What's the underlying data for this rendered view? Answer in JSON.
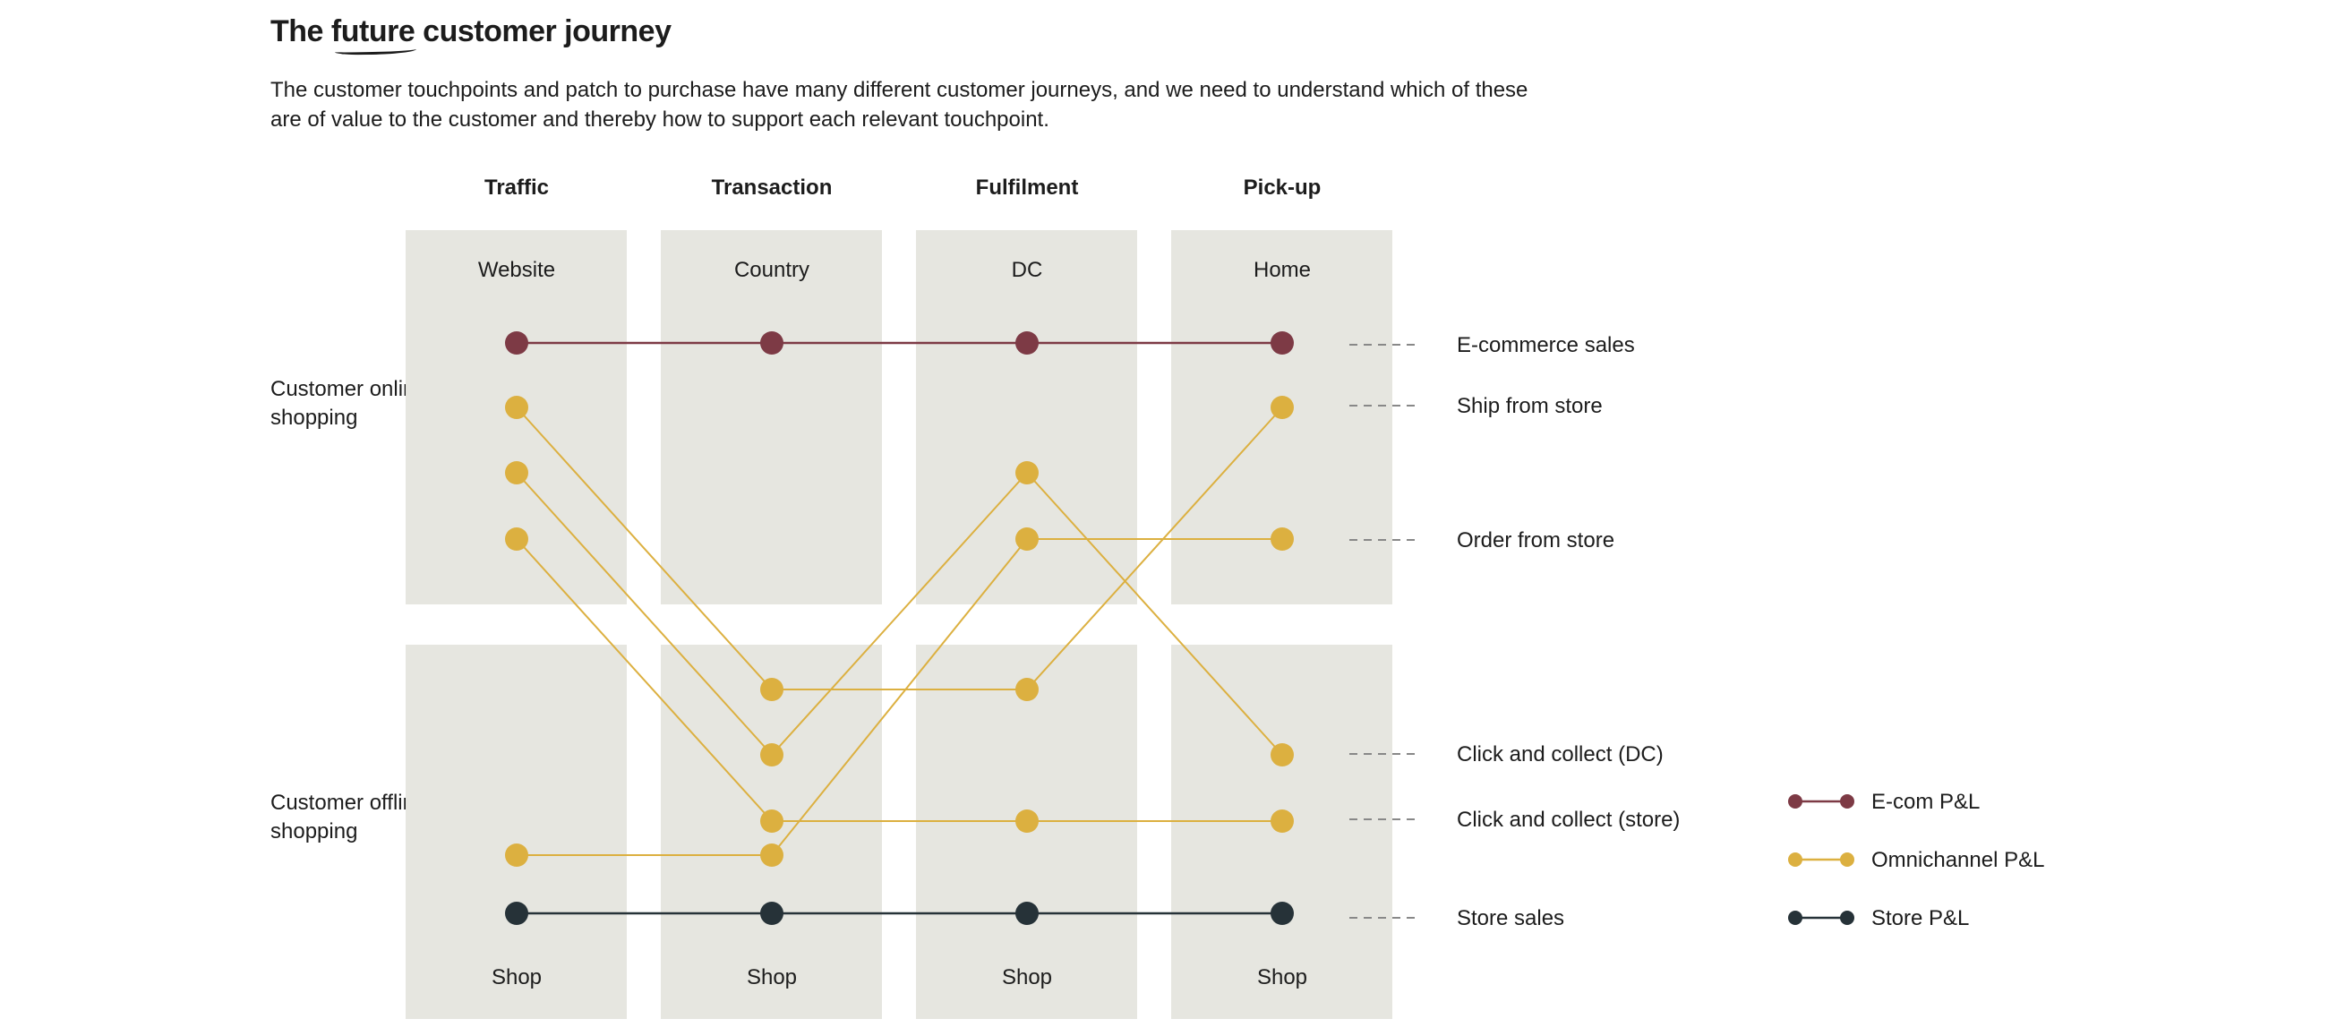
{
  "title": {
    "before": "The ",
    "underlined": "future",
    "after": " customer journey"
  },
  "intro": "The customer touchpoints and patch to purchase have many different customer journeys, and we need to understand which of these are of value to the customer and thereby how to support each relevant touchpoint.",
  "stages": [
    {
      "header": "Traffic",
      "online": "Website",
      "offline": "Shop"
    },
    {
      "header": "Transaction",
      "online": "Country",
      "offline": "Shop"
    },
    {
      "header": "Fulfilment",
      "online": "DC",
      "offline": "Shop"
    },
    {
      "header": "Pick-up",
      "online": "Home",
      "offline": "Shop"
    }
  ],
  "row_labels": {
    "online": "Customer online shopping",
    "offline": "Customer offline shopping"
  },
  "journeys": [
    {
      "label": "E-commerce sales",
      "pl": "ecom",
      "path": [
        "online",
        "online",
        "online",
        "online"
      ]
    },
    {
      "label": "Ship from store",
      "pl": "omni",
      "path": [
        "online",
        "offline",
        "offline",
        "online"
      ]
    },
    {
      "label": "Order from store",
      "pl": "omni",
      "path": [
        "offline",
        "offline",
        "online",
        "online"
      ]
    },
    {
      "label": "Click and collect (DC)",
      "pl": "omni",
      "path": [
        "online",
        "offline",
        "online",
        "offline"
      ]
    },
    {
      "label": "Click and collect (store)",
      "pl": "omni",
      "path": [
        "online",
        "offline",
        "offline",
        "offline"
      ]
    },
    {
      "label": "Store sales",
      "pl": "store",
      "path": [
        "offline",
        "offline",
        "offline",
        "offline"
      ]
    }
  ],
  "legend": [
    {
      "key": "ecom",
      "label": "E-com P&L",
      "color": "#7d3a45"
    },
    {
      "key": "omni",
      "label": "Omnichannel P&L",
      "color": "#dcb040"
    },
    {
      "key": "store",
      "label": "Store P&L",
      "color": "#263238"
    }
  ],
  "colors": {
    "box": "#e6e6e0",
    "dash": "#888888"
  }
}
